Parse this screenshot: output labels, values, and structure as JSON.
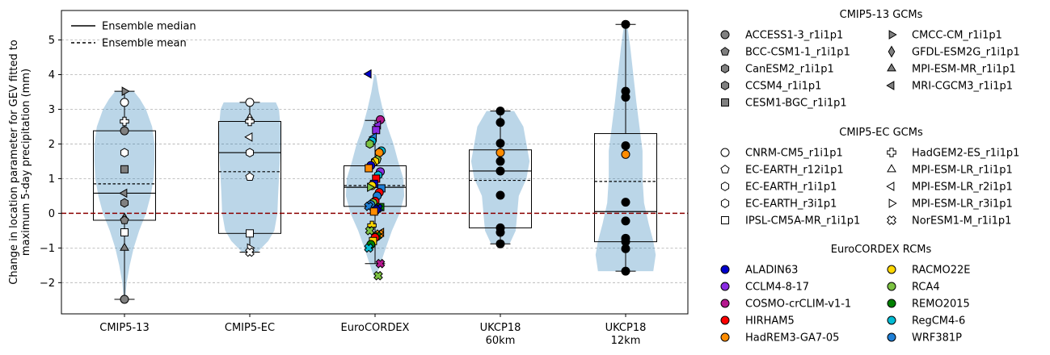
{
  "chart_data": {
    "type": "violin-box-scatter",
    "ylabel": "Change in location parameter for GEV fitted to\nmaximum 5-day precipitation (mm)",
    "ylim": [
      -2.9,
      5.85
    ],
    "yticks": [
      -2,
      -1,
      0,
      1,
      2,
      3,
      4,
      5
    ],
    "grid": "y dashed",
    "zero_line": {
      "value": 0,
      "color": "#8b0000",
      "style": "dashed"
    },
    "categories": [
      "CMIP5-13",
      "CMIP5-EC",
      "EuroCORDEX",
      "UKCP18\n60km",
      "UKCP18\n12km"
    ],
    "legend_main": [
      "Ensemble median",
      "Ensemble mean"
    ],
    "groups": [
      {
        "name": "CMIP5-13",
        "box": {
          "q1": -0.2,
          "median": 0.58,
          "mean": 0.85,
          "q3": 2.38,
          "whislo": -2.48,
          "whishi": 3.52
        },
        "violin": [
          [
            -2.5,
            0.02
          ],
          [
            -2.0,
            0.07
          ],
          [
            -1.5,
            0.17
          ],
          [
            -1.0,
            0.3
          ],
          [
            -0.5,
            0.48
          ],
          [
            0,
            0.7
          ],
          [
            0.5,
            0.85
          ],
          [
            1.0,
            0.95
          ],
          [
            1.5,
            0.98
          ],
          [
            2.0,
            0.98
          ],
          [
            2.5,
            0.9
          ],
          [
            3.0,
            0.7
          ],
          [
            3.3,
            0.5
          ],
          [
            3.52,
            0.3
          ]
        ],
        "points": [
          {
            "y": 3.52,
            "m": "tri-right",
            "fill": "#808080"
          },
          {
            "y": 3.2,
            "m": "circle",
            "fill": "#ffffff"
          },
          {
            "y": 2.65,
            "m": "plus",
            "fill": "#ffffff"
          },
          {
            "y": 2.38,
            "m": "circle",
            "fill": "#808080"
          },
          {
            "y": 1.75,
            "m": "hexagon",
            "fill": "#ffffff"
          },
          {
            "y": 1.27,
            "m": "square",
            "fill": "#808080"
          },
          {
            "y": 0.58,
            "m": "tri-left",
            "fill": "#808080"
          },
          {
            "y": 0.3,
            "m": "hexagon",
            "fill": "#808080"
          },
          {
            "y": -0.15,
            "m": "diamond",
            "fill": "#808080"
          },
          {
            "y": -0.2,
            "m": "pentagon",
            "fill": "#808080"
          },
          {
            "y": -0.55,
            "m": "square",
            "fill": "#ffffff"
          },
          {
            "y": -1.0,
            "m": "tri-up",
            "fill": "#808080"
          },
          {
            "y": -2.48,
            "m": "circle",
            "fill": "#808080"
          }
        ]
      },
      {
        "name": "CMIP5-EC",
        "box": {
          "q1": -0.58,
          "median": 1.75,
          "mean": 1.2,
          "q3": 2.65,
          "whislo": -1.12,
          "whishi": 3.2
        },
        "violin": [
          [
            -1.12,
            0.25
          ],
          [
            -0.8,
            0.6
          ],
          [
            -0.5,
            0.8
          ],
          [
            0,
            0.9
          ],
          [
            0.5,
            0.92
          ],
          [
            1.0,
            0.95
          ],
          [
            1.5,
            0.98
          ],
          [
            2.0,
            1.0
          ],
          [
            2.5,
            1.0
          ],
          [
            3.0,
            0.95
          ],
          [
            3.2,
            0.85
          ]
        ],
        "points": [
          {
            "y": 3.2,
            "m": "circle",
            "fill": "#ffffff"
          },
          {
            "y": 2.75,
            "m": "tri-up",
            "fill": "#ffffff"
          },
          {
            "y": 2.65,
            "m": "plus",
            "fill": "#ffffff"
          },
          {
            "y": 2.2,
            "m": "tri-left",
            "fill": "#ffffff"
          },
          {
            "y": 1.75,
            "m": "hexagon",
            "fill": "#ffffff"
          },
          {
            "y": 1.05,
            "m": "pentagon",
            "fill": "#ffffff"
          },
          {
            "y": -0.58,
            "m": "square",
            "fill": "#ffffff"
          },
          {
            "y": -1.0,
            "m": "tri-right",
            "fill": "#ffffff"
          },
          {
            "y": -1.12,
            "m": "cross",
            "fill": "#ffffff"
          }
        ]
      },
      {
        "name": "EuroCORDEX",
        "box": {
          "q1": 0.2,
          "median": 0.75,
          "mean": 0.8,
          "q3": 1.37,
          "whislo": -1.45,
          "whishi": 2.68
        },
        "violin": [
          [
            -1.8,
            0.05
          ],
          [
            -1.4,
            0.2
          ],
          [
            -1.0,
            0.35
          ],
          [
            -0.5,
            0.55
          ],
          [
            0,
            0.8
          ],
          [
            0.5,
            0.95
          ],
          [
            1.0,
            0.92
          ],
          [
            1.5,
            0.75
          ],
          [
            2.0,
            0.6
          ],
          [
            2.5,
            0.4
          ],
          [
            3.0,
            0.25
          ],
          [
            3.5,
            0.12
          ],
          [
            4.0,
            0.03
          ]
        ],
        "points": [
          {
            "y": 4.02,
            "m": "tri-left",
            "fill": "#0000cc"
          },
          {
            "y": 2.7,
            "m": "circle",
            "fill": "#b5178f"
          },
          {
            "y": 2.55,
            "m": "tri-left",
            "fill": "#8a2be2"
          },
          {
            "y": 2.4,
            "m": "square",
            "fill": "#8a2be2"
          },
          {
            "y": 2.2,
            "m": "tri-left",
            "fill": "#1f7fd6"
          },
          {
            "y": 2.08,
            "m": "circle",
            "fill": "#00bcd4"
          },
          {
            "y": 2.0,
            "m": "hexagon",
            "fill": "#7cc242"
          },
          {
            "y": 1.8,
            "m": "circle",
            "fill": "#00bcd4"
          },
          {
            "y": 1.75,
            "m": "circle",
            "fill": "#ff8c00"
          },
          {
            "y": 1.55,
            "m": "pentagon",
            "fill": "#7cc242"
          },
          {
            "y": 1.5,
            "m": "hexagon",
            "fill": "#ffd700"
          },
          {
            "y": 1.45,
            "m": "tri-up",
            "fill": "#ffd700"
          },
          {
            "y": 1.38,
            "m": "circle",
            "fill": "#0000cc"
          },
          {
            "y": 1.3,
            "m": "square",
            "fill": "#ff8c00"
          },
          {
            "y": 1.2,
            "m": "circle",
            "fill": "#8a2be2"
          },
          {
            "y": 1.1,
            "m": "hexagon",
            "fill": "#00bcd4"
          },
          {
            "y": 1.0,
            "m": "square",
            "fill": "#ff0000"
          },
          {
            "y": 0.85,
            "m": "square",
            "fill": "#0000cc"
          },
          {
            "y": 0.8,
            "m": "circle",
            "fill": "#ffd700"
          },
          {
            "y": 0.75,
            "m": "tri-right",
            "fill": "#7cc242"
          },
          {
            "y": 0.72,
            "m": "square",
            "fill": "#1f7fd6"
          },
          {
            "y": 0.6,
            "m": "circle",
            "fill": "#ff0000"
          },
          {
            "y": 0.5,
            "m": "circle",
            "fill": "#1f7fd6"
          },
          {
            "y": 0.35,
            "m": "circle",
            "fill": "#ff0000"
          },
          {
            "y": 0.3,
            "m": "circle",
            "fill": "#7cc242"
          },
          {
            "y": 0.25,
            "m": "circle",
            "fill": "#1f7fd6"
          },
          {
            "y": 0.2,
            "m": "cross",
            "fill": "#1f7fd6"
          },
          {
            "y": 0.18,
            "m": "square",
            "fill": "#008000"
          },
          {
            "y": 0.15,
            "m": "cross",
            "fill": "#0000cc"
          },
          {
            "y": 0.1,
            "m": "circle",
            "fill": "#0000cc"
          },
          {
            "y": 0.05,
            "m": "square",
            "fill": "#ff8c00"
          },
          {
            "y": -0.35,
            "m": "plus",
            "fill": "#ffd700"
          },
          {
            "y": -0.5,
            "m": "cross",
            "fill": "#7cc242"
          },
          {
            "y": -0.55,
            "m": "tri-left",
            "fill": "#ff8c00"
          },
          {
            "y": -0.6,
            "m": "cross",
            "fill": "#ff8c00"
          },
          {
            "y": -0.65,
            "m": "cross",
            "fill": "#008000"
          },
          {
            "y": -0.7,
            "m": "circle",
            "fill": "#ff0000"
          },
          {
            "y": -0.8,
            "m": "square",
            "fill": "#ffd700"
          },
          {
            "y": -0.9,
            "m": "circle",
            "fill": "#008000"
          },
          {
            "y": -1.0,
            "m": "cross",
            "fill": "#00bcd4"
          },
          {
            "y": -1.45,
            "m": "cross",
            "fill": "#b5178f"
          },
          {
            "y": -1.8,
            "m": "cross",
            "fill": "#7cc242"
          }
        ]
      },
      {
        "name": "UKCP18 60km",
        "box": {
          "q1": -0.42,
          "median": 1.22,
          "mean": 0.95,
          "q3": 1.83,
          "whislo": -0.88,
          "whishi": 2.95
        },
        "violin": [
          [
            -0.88,
            0.3
          ],
          [
            -0.5,
            0.5
          ],
          [
            0,
            0.55
          ],
          [
            0.5,
            0.6
          ],
          [
            1.0,
            0.85
          ],
          [
            1.5,
            0.95
          ],
          [
            2.0,
            0.85
          ],
          [
            2.5,
            0.75
          ],
          [
            2.95,
            0.45
          ]
        ],
        "points": [
          {
            "y": 2.95,
            "m": "circle",
            "fill": "#000000"
          },
          {
            "y": 2.62,
            "m": "circle",
            "fill": "#000000"
          },
          {
            "y": 2.02,
            "m": "circle",
            "fill": "#000000"
          },
          {
            "y": 1.75,
            "m": "circle",
            "fill": "#ff8c00"
          },
          {
            "y": 1.5,
            "m": "circle",
            "fill": "#000000"
          },
          {
            "y": 1.22,
            "m": "circle",
            "fill": "#000000"
          },
          {
            "y": 0.52,
            "m": "circle",
            "fill": "#000000"
          },
          {
            "y": -0.42,
            "m": "circle",
            "fill": "#000000"
          },
          {
            "y": -0.55,
            "m": "circle",
            "fill": "#000000"
          },
          {
            "y": -0.88,
            "m": "circle",
            "fill": "#000000"
          }
        ]
      },
      {
        "name": "UKCP18 12km",
        "box": {
          "q1": -0.82,
          "median": 0.05,
          "mean": 0.92,
          "q3": 2.3,
          "whislo": -1.67,
          "whishi": 5.45
        },
        "violin": [
          [
            -1.67,
            0.9
          ],
          [
            -1.2,
            0.98
          ],
          [
            -0.8,
            0.9
          ],
          [
            -0.3,
            0.75
          ],
          [
            0.3,
            0.6
          ],
          [
            1.0,
            0.55
          ],
          [
            1.8,
            0.55
          ],
          [
            2.5,
            0.45
          ],
          [
            3.2,
            0.35
          ],
          [
            4.0,
            0.25
          ],
          [
            4.8,
            0.15
          ],
          [
            5.45,
            0.05
          ]
        ],
        "points": [
          {
            "y": 5.45,
            "m": "circle",
            "fill": "#000000"
          },
          {
            "y": 3.52,
            "m": "circle",
            "fill": "#000000"
          },
          {
            "y": 3.35,
            "m": "circle",
            "fill": "#000000"
          },
          {
            "y": 1.95,
            "m": "circle",
            "fill": "#000000"
          },
          {
            "y": 1.7,
            "m": "circle",
            "fill": "#ff8c00"
          },
          {
            "y": 0.32,
            "m": "circle",
            "fill": "#000000"
          },
          {
            "y": -0.22,
            "m": "circle",
            "fill": "#000000"
          },
          {
            "y": -0.72,
            "m": "circle",
            "fill": "#000000"
          },
          {
            "y": -0.82,
            "m": "circle",
            "fill": "#000000"
          },
          {
            "y": -1.02,
            "m": "circle",
            "fill": "#000000"
          },
          {
            "y": -1.67,
            "m": "circle",
            "fill": "#000000"
          }
        ]
      }
    ],
    "legends": [
      {
        "title": "CMIP5-13 GCMs",
        "items": [
          {
            "label": "ACCESS1-3_r1i1p1",
            "m": "circle",
            "fill": "#808080"
          },
          {
            "label": "BCC-CSM1-1_r1i1p1",
            "m": "pentagon",
            "fill": "#808080"
          },
          {
            "label": "CanESM2_r1i1p1",
            "m": "hexagon",
            "fill": "#808080"
          },
          {
            "label": "CCSM4_r1i1p1",
            "m": "hexagon",
            "fill": "#808080"
          },
          {
            "label": "CESM1-BGC_r1i1p1",
            "m": "square",
            "fill": "#808080"
          },
          {
            "label": "CMCC-CM_r1i1p1",
            "m": "tri-right",
            "fill": "#808080"
          },
          {
            "label": "GFDL-ESM2G_r1i1p1",
            "m": "diamond",
            "fill": "#808080"
          },
          {
            "label": "MPI-ESM-MR_r1i1p1",
            "m": "tri-up",
            "fill": "#808080"
          },
          {
            "label": "MRI-CGCM3_r1i1p1",
            "m": "tri-left",
            "fill": "#808080"
          }
        ]
      },
      {
        "title": "CMIP5-EC GCMs",
        "items": [
          {
            "label": "CNRM-CM5_r1i1p1",
            "m": "circle",
            "fill": "#ffffff"
          },
          {
            "label": "EC-EARTH_r12i1p1",
            "m": "pentagon",
            "fill": "#ffffff"
          },
          {
            "label": "EC-EARTH_r1i1p1",
            "m": "hexagon",
            "fill": "#ffffff"
          },
          {
            "label": "EC-EARTH_r3i1p1",
            "m": "hexagon",
            "fill": "#ffffff"
          },
          {
            "label": "IPSL-CM5A-MR_r1i1p1",
            "m": "square",
            "fill": "#ffffff"
          },
          {
            "label": "HadGEM2-ES_r1i1p1",
            "m": "plus",
            "fill": "#ffffff"
          },
          {
            "label": "MPI-ESM-LR_r1i1p1",
            "m": "tri-up",
            "fill": "#ffffff"
          },
          {
            "label": "MPI-ESM-LR_r2i1p1",
            "m": "tri-left",
            "fill": "#ffffff"
          },
          {
            "label": "MPI-ESM-LR_r3i1p1",
            "m": "tri-right",
            "fill": "#ffffff"
          },
          {
            "label": "NorESM1-M_r1i1p1",
            "m": "cross",
            "fill": "#ffffff"
          }
        ]
      },
      {
        "title": "EuroCORDEX RCMs",
        "items": [
          {
            "label": "ALADIN63",
            "m": "circle",
            "fill": "#0000cc"
          },
          {
            "label": "CCLM4-8-17",
            "m": "circle",
            "fill": "#8a2be2"
          },
          {
            "label": "COSMO-crCLIM-v1-1",
            "m": "circle",
            "fill": "#b5178f"
          },
          {
            "label": "HIRHAM5",
            "m": "circle",
            "fill": "#ff0000"
          },
          {
            "label": "HadREM3-GA7-05",
            "m": "circle",
            "fill": "#ff8c00"
          },
          {
            "label": "RACMO22E",
            "m": "circle",
            "fill": "#ffd700"
          },
          {
            "label": "RCA4",
            "m": "circle",
            "fill": "#7cc242"
          },
          {
            "label": "REMO2015",
            "m": "circle",
            "fill": "#008000"
          },
          {
            "label": "RegCM4-6",
            "m": "circle",
            "fill": "#00bcd4"
          },
          {
            "label": "WRF381P",
            "m": "circle",
            "fill": "#1f7fd6"
          }
        ]
      }
    ]
  }
}
